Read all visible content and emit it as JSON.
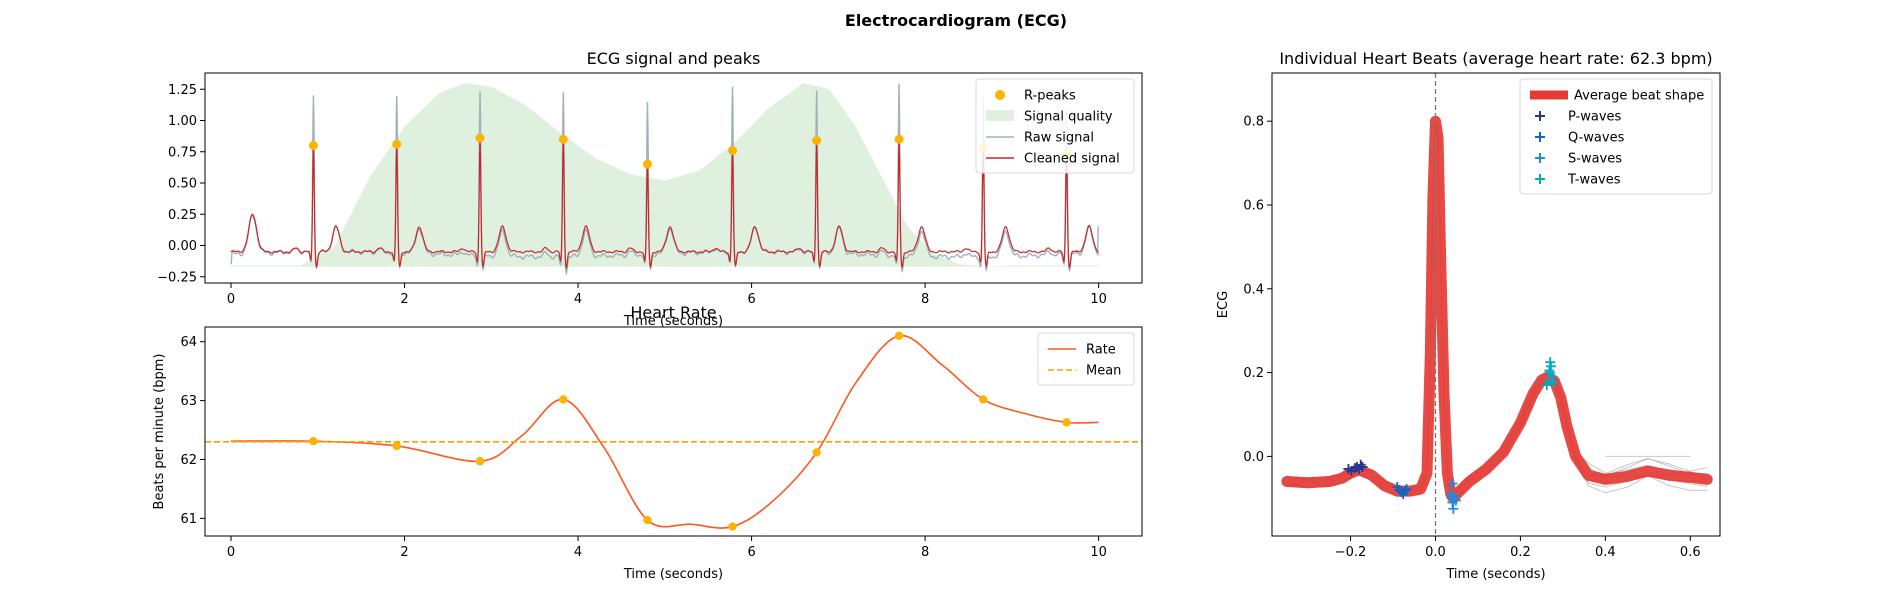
{
  "figure": {
    "title": "Electrocardiogram (ECG)"
  },
  "chart_data": [
    {
      "id": "ecg",
      "type": "line",
      "title": "ECG signal and peaks",
      "xlabel": "Time (seconds)",
      "ylabel": "",
      "xlim": [
        -0.3,
        10.5
      ],
      "ylim": [
        -0.3,
        1.38
      ],
      "xticks": [
        0,
        2,
        4,
        6,
        8,
        10
      ],
      "xtick_labels": [
        "0",
        "2",
        "4",
        "6",
        "8",
        "10"
      ],
      "yticks": [
        -0.25,
        0,
        0.25,
        0.5,
        0.75,
        1.0,
        1.25
      ],
      "ytick_labels": [
        "−0.25",
        "0.00",
        "0.25",
        "0.50",
        "0.75",
        "1.00",
        "1.25"
      ],
      "grid": false,
      "legend_position": "top-right",
      "legend": [
        "R-peaks",
        "Signal quality",
        "Raw signal",
        "Cleaned signal"
      ],
      "colors": {
        "peaks": "#FFB300",
        "quality": "#DFF0DF",
        "raw": "#9FB2BE",
        "clean": "#C62828"
      },
      "r_peaks": {
        "x": [
          0.95,
          1.91,
          2.87,
          3.83,
          4.8,
          5.78,
          6.75,
          7.7,
          8.67,
          9.63
        ],
        "y": [
          0.8,
          0.81,
          0.86,
          0.85,
          0.65,
          0.76,
          0.84,
          0.85,
          0.78,
          0.73
        ]
      },
      "quality": {
        "x": [
          0,
          0.8,
          1.2,
          1.6,
          2.0,
          2.4,
          2.7,
          3.0,
          3.4,
          3.8,
          4.2,
          4.6,
          5.0,
          5.4,
          5.8,
          6.2,
          6.6,
          6.9,
          7.2,
          7.5,
          7.8,
          8.1,
          8.4,
          8.7,
          9.0,
          9.4,
          10.0
        ],
        "y": [
          -0.16,
          -0.16,
          0.0,
          0.55,
          0.95,
          1.22,
          1.3,
          1.27,
          1.12,
          0.9,
          0.7,
          0.57,
          0.52,
          0.6,
          0.82,
          1.1,
          1.3,
          1.25,
          0.95,
          0.55,
          0.15,
          -0.07,
          -0.15,
          -0.17,
          -0.16,
          -0.16,
          -0.16
        ]
      },
      "raw_peak_heights": [
        1.22,
        1.2,
        1.28,
        1.27,
        1.16,
        1.28,
        1.27,
        1.32,
        1.22,
        1.12
      ]
    },
    {
      "id": "heart-rate",
      "type": "line",
      "title": "Heart Rate",
      "xlabel": "Time (seconds)",
      "ylabel": "Beats per minute (bpm)",
      "xlim": [
        -0.3,
        10.5
      ],
      "ylim": [
        60.7,
        64.25
      ],
      "xticks": [
        0,
        2,
        4,
        6,
        8,
        10
      ],
      "xtick_labels": [
        "0",
        "2",
        "4",
        "6",
        "8",
        "10"
      ],
      "yticks": [
        61,
        62,
        63,
        64
      ],
      "ytick_labels": [
        "61",
        "62",
        "63",
        "64"
      ],
      "grid": false,
      "legend_position": "top-right",
      "legend": [
        "Rate",
        "Mean"
      ],
      "mean": 62.3,
      "colors": {
        "rate": "#FF5722",
        "mean": "#FFA000",
        "points": "#FFB300"
      },
      "points": {
        "x": [
          0.95,
          1.91,
          2.87,
          3.83,
          4.8,
          5.78,
          6.75,
          7.7,
          8.67,
          9.63
        ],
        "y": [
          62.31,
          62.23,
          61.97,
          63.02,
          60.97,
          60.86,
          62.12,
          64.1,
          63.02,
          62.63
        ]
      },
      "line": {
        "x": [
          0,
          0.95,
          1.91,
          2.87,
          3.35,
          3.83,
          4.3,
          4.8,
          5.3,
          5.78,
          6.25,
          6.75,
          7.2,
          7.7,
          8.2,
          8.67,
          9.15,
          9.63,
          10.0
        ],
        "y": [
          62.31,
          62.31,
          62.23,
          61.97,
          62.4,
          63.02,
          62.2,
          60.97,
          60.9,
          60.86,
          61.3,
          62.12,
          63.3,
          64.1,
          63.6,
          63.02,
          62.78,
          62.63,
          62.63
        ]
      }
    },
    {
      "id": "beats",
      "type": "line",
      "title": "Individual Heart Beats (average heart rate: 62.3 bpm)",
      "xlabel": "Time (seconds)",
      "ylabel": "ECG",
      "xlim": [
        -0.385,
        0.67
      ],
      "ylim": [
        -0.19,
        0.915
      ],
      "xticks": [
        -0.2,
        0.0,
        0.2,
        0.4,
        0.6
      ],
      "xtick_labels": [
        "−0.2",
        "0.0",
        "0.2",
        "0.4",
        "0.6"
      ],
      "yticks": [
        0.0,
        0.2,
        0.4,
        0.6,
        0.8
      ],
      "ytick_labels": [
        "0.0",
        "0.2",
        "0.4",
        "0.6",
        "0.8"
      ],
      "grid": false,
      "legend_position": "top-right",
      "legend": [
        "Average beat shape",
        "P-waves",
        "Q-waves",
        "S-waves",
        "T-waves"
      ],
      "colors": {
        "avg": "#E53935",
        "p": "#283593",
        "q": "#1565C0",
        "s": "#1E88E5",
        "t": "#00ACC1"
      },
      "average_beat": {
        "x": [
          -0.35,
          -0.3,
          -0.25,
          -0.22,
          -0.2,
          -0.18,
          -0.15,
          -0.12,
          -0.09,
          -0.06,
          -0.035,
          -0.02,
          -0.012,
          -0.006,
          0.0,
          0.006,
          0.012,
          0.02,
          0.028,
          0.036,
          0.042,
          0.05,
          0.08,
          0.12,
          0.16,
          0.2,
          0.23,
          0.25,
          0.265,
          0.28,
          0.295,
          0.31,
          0.33,
          0.36,
          0.4,
          0.45,
          0.5,
          0.55,
          0.6,
          0.64
        ],
        "y": [
          -0.06,
          -0.063,
          -0.06,
          -0.052,
          -0.04,
          -0.032,
          -0.045,
          -0.07,
          -0.083,
          -0.083,
          -0.078,
          -0.04,
          0.25,
          0.62,
          0.8,
          0.76,
          0.48,
          0.15,
          -0.04,
          -0.09,
          -0.1,
          -0.09,
          -0.06,
          -0.03,
          0.01,
          0.08,
          0.15,
          0.182,
          0.19,
          0.18,
          0.14,
          0.07,
          0.0,
          -0.045,
          -0.055,
          -0.048,
          -0.035,
          -0.045,
          -0.05,
          -0.055
        ]
      },
      "p_waves": {
        "x": [
          -0.205,
          -0.198,
          -0.19,
          -0.185,
          -0.18,
          -0.176,
          -0.172
        ],
        "y": [
          -0.03,
          -0.035,
          -0.028,
          -0.025,
          -0.03,
          -0.02,
          -0.025
        ]
      },
      "q_waves": {
        "x": [
          -0.09,
          -0.085,
          -0.08,
          -0.076,
          -0.072,
          -0.068
        ],
        "y": [
          -0.073,
          -0.08,
          -0.085,
          -0.09,
          -0.082,
          -0.078
        ]
      },
      "s_waves": {
        "x": [
          0.035,
          0.038,
          0.04,
          0.042,
          0.045,
          0.048,
          0.04
        ],
        "y": [
          -0.09,
          -0.1,
          -0.11,
          -0.125,
          -0.095,
          -0.105,
          -0.065
        ]
      },
      "t_waves": {
        "x": [
          0.262,
          0.266,
          0.27,
          0.272,
          0.275,
          0.278,
          0.268,
          0.27
        ],
        "y": [
          0.17,
          0.18,
          0.2,
          0.215,
          0.19,
          0.175,
          0.205,
          0.225
        ]
      }
    }
  ]
}
